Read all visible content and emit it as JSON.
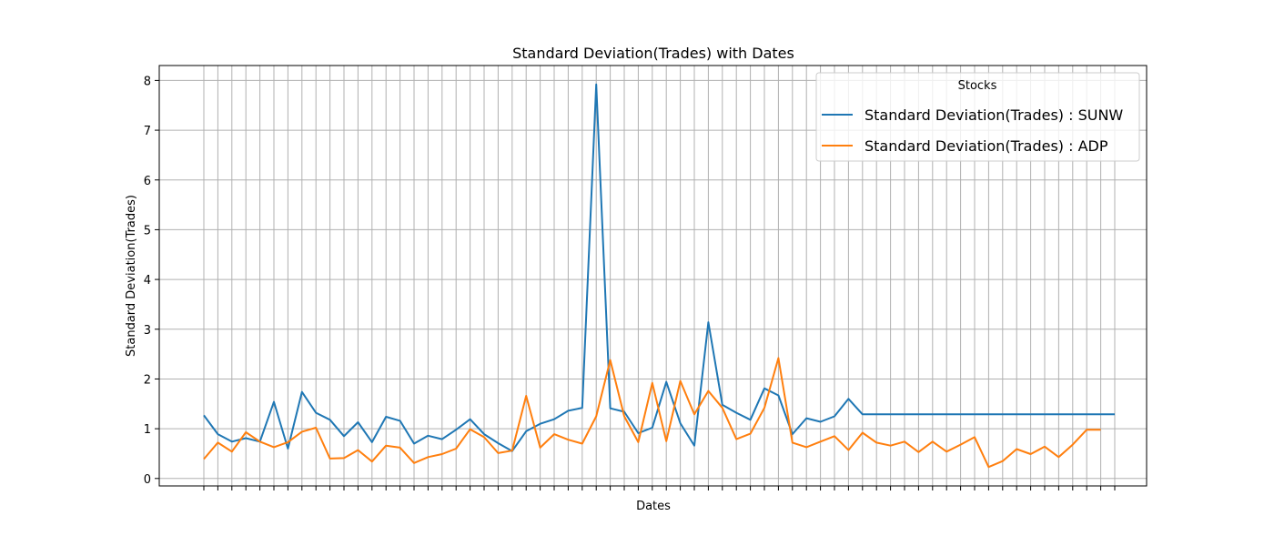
{
  "chart_data": {
    "type": "line",
    "title": "Standard Deviation(Trades) with Dates",
    "xlabel": "Dates",
    "ylabel": "Standard Deviation(Trades)",
    "ylim": [
      -0.15,
      8.3
    ],
    "yticks": [
      0,
      1,
      2,
      3,
      4,
      5,
      6,
      7,
      8
    ],
    "grid": true,
    "legend": {
      "title": "Stocks",
      "placement": "top-right"
    },
    "series": [
      {
        "name": "Standard Deviation(Trades) : SUNW",
        "color": "#1f77b4",
        "values": [
          1.27,
          0.89,
          0.74,
          0.81,
          0.74,
          1.54,
          0.6,
          1.74,
          1.32,
          1.18,
          0.85,
          1.13,
          0.73,
          1.24,
          1.16,
          0.7,
          0.86,
          0.79,
          0.98,
          1.19,
          0.89,
          0.71,
          0.55,
          0.95,
          1.1,
          1.19,
          1.36,
          1.42,
          7.92,
          1.41,
          1.34,
          0.91,
          1.02,
          1.94,
          1.11,
          0.66,
          3.14,
          1.48,
          1.32,
          1.18,
          1.81,
          1.67,
          0.89,
          1.21,
          1.14,
          1.25,
          1.6,
          1.29,
          1.29,
          1.29,
          1.29,
          1.29,
          1.29,
          1.29,
          1.29,
          1.29,
          1.29,
          1.29,
          1.29,
          1.29,
          1.29,
          1.29,
          1.29,
          1.29,
          1.29,
          1.29
        ]
      },
      {
        "name": "Standard Deviation(Trades) : ADP",
        "color": "#ff7f0e",
        "values": [
          0.39,
          0.72,
          0.54,
          0.93,
          0.74,
          0.63,
          0.73,
          0.94,
          1.02,
          0.4,
          0.41,
          0.57,
          0.34,
          0.66,
          0.62,
          0.31,
          0.43,
          0.49,
          0.6,
          0.99,
          0.83,
          0.51,
          0.56,
          1.66,
          0.62,
          0.89,
          0.78,
          0.7,
          1.25,
          2.38,
          1.25,
          0.73,
          1.92,
          0.75,
          1.96,
          1.29,
          1.76,
          1.42,
          0.79,
          0.9,
          1.42,
          2.42,
          0.72,
          0.63,
          0.74,
          0.85,
          0.57,
          0.92,
          0.72,
          0.66,
          0.74,
          0.53,
          0.74,
          0.54,
          0.68,
          0.83,
          0.23,
          0.35,
          0.59,
          0.49,
          0.64,
          0.43,
          0.68,
          0.98,
          0.98
        ]
      }
    ]
  }
}
